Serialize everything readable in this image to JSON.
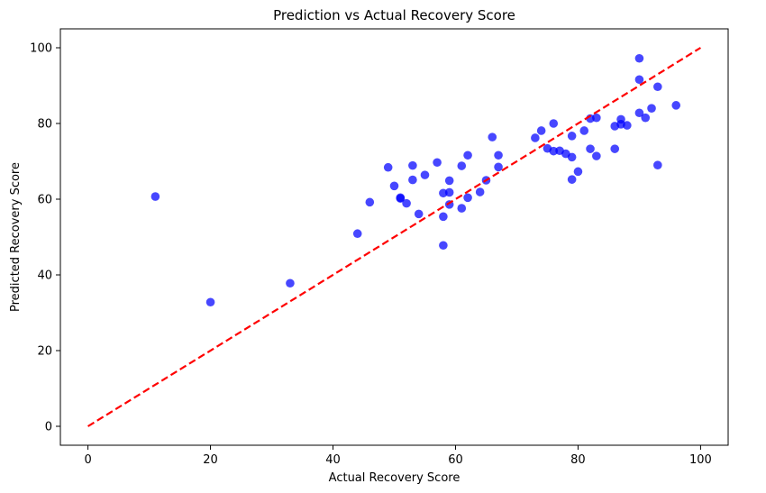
{
  "chart_data": {
    "type": "scatter",
    "title": "Prediction vs Actual Recovery Score",
    "xlabel": "Actual Recovery Score",
    "ylabel": "Predicted Recovery Score",
    "xlim": [
      -4.5,
      104.5
    ],
    "ylim": [
      -5,
      105
    ],
    "xticks": [
      0,
      20,
      40,
      60,
      80,
      100
    ],
    "yticks": [
      0,
      20,
      40,
      60,
      80,
      100
    ],
    "grid": false,
    "point_color": "#0000ff",
    "line_color": "#ff0000",
    "reference_line": {
      "style": "dashed",
      "x": [
        0,
        100
      ],
      "y": [
        0,
        100
      ]
    },
    "points": [
      {
        "x": 11,
        "y": 60.7
      },
      {
        "x": 20,
        "y": 32.8
      },
      {
        "x": 33,
        "y": 37.8
      },
      {
        "x": 44,
        "y": 50.9
      },
      {
        "x": 46,
        "y": 59.2
      },
      {
        "x": 49,
        "y": 68.4
      },
      {
        "x": 50,
        "y": 63.5
      },
      {
        "x": 51,
        "y": 60.4
      },
      {
        "x": 51,
        "y": 60.2
      },
      {
        "x": 52,
        "y": 58.9
      },
      {
        "x": 53,
        "y": 65.1
      },
      {
        "x": 53,
        "y": 68.9
      },
      {
        "x": 54,
        "y": 56.1
      },
      {
        "x": 55,
        "y": 66.4
      },
      {
        "x": 57,
        "y": 69.7
      },
      {
        "x": 58,
        "y": 61.6
      },
      {
        "x": 58,
        "y": 55.4
      },
      {
        "x": 58,
        "y": 47.8
      },
      {
        "x": 59,
        "y": 64.9
      },
      {
        "x": 59,
        "y": 61.8
      },
      {
        "x": 59,
        "y": 58.6
      },
      {
        "x": 61,
        "y": 68.8
      },
      {
        "x": 61,
        "y": 57.6
      },
      {
        "x": 62,
        "y": 71.6
      },
      {
        "x": 62,
        "y": 60.4
      },
      {
        "x": 64,
        "y": 61.9
      },
      {
        "x": 65,
        "y": 65.0
      },
      {
        "x": 66,
        "y": 76.4
      },
      {
        "x": 67,
        "y": 71.6
      },
      {
        "x": 67,
        "y": 68.5
      },
      {
        "x": 73,
        "y": 76.2
      },
      {
        "x": 74,
        "y": 78.1
      },
      {
        "x": 75,
        "y": 73.4
      },
      {
        "x": 76,
        "y": 80.0
      },
      {
        "x": 76,
        "y": 72.7
      },
      {
        "x": 77,
        "y": 72.8
      },
      {
        "x": 78,
        "y": 72.0
      },
      {
        "x": 79,
        "y": 76.7
      },
      {
        "x": 79,
        "y": 71.1
      },
      {
        "x": 79,
        "y": 65.2
      },
      {
        "x": 80,
        "y": 67.3
      },
      {
        "x": 81,
        "y": 78.1
      },
      {
        "x": 82,
        "y": 81.3
      },
      {
        "x": 82,
        "y": 73.3
      },
      {
        "x": 83,
        "y": 81.5
      },
      {
        "x": 83,
        "y": 71.4
      },
      {
        "x": 86,
        "y": 79.3
      },
      {
        "x": 86,
        "y": 73.3
      },
      {
        "x": 87,
        "y": 81.1
      },
      {
        "x": 87,
        "y": 79.8
      },
      {
        "x": 88,
        "y": 79.5
      },
      {
        "x": 90,
        "y": 97.2
      },
      {
        "x": 90,
        "y": 91.6
      },
      {
        "x": 90,
        "y": 82.8
      },
      {
        "x": 91,
        "y": 81.5
      },
      {
        "x": 92,
        "y": 84.0
      },
      {
        "x": 93,
        "y": 89.7
      },
      {
        "x": 93,
        "y": 69.0
      },
      {
        "x": 96,
        "y": 84.8
      }
    ]
  }
}
